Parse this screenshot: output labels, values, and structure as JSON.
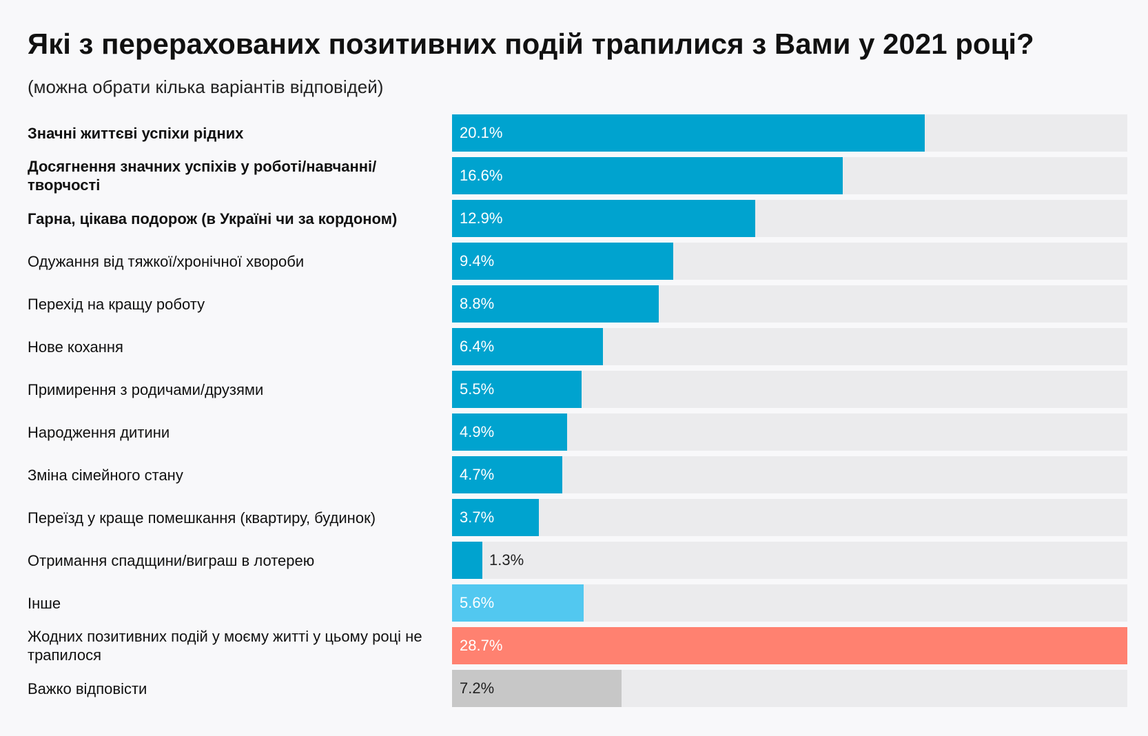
{
  "title": "Які з перерахованих позитивних подій трапилися з Вами у 2021 році?",
  "subtitle": "(можна обрати кілька варіантів відповідей)",
  "colors": {
    "primary": "#00a3cf",
    "other": "#52c8f0",
    "none": "#ff8170",
    "hard": "#c7c7c7",
    "track": "#ebebed"
  },
  "chart_data": {
    "type": "bar",
    "orientation": "horizontal",
    "xlim": [
      0,
      28.7
    ],
    "unit": "%",
    "categories": [
      "Значні життєві успіхи рідних",
      "Досягнення значних успіхів у роботі/навчанні/ творчості",
      "Гарна, цікава подорож (в Україні чи за кордоном)",
      "Одужання від тяжкої/хронічної хвороби",
      "Перехід на кращу роботу",
      "Нове кохання",
      "Примирення з родичами/друзями",
      "Народження дитини",
      "Зміна сімейного стану",
      "Переїзд у краще помешкання (квартиру, будинок)",
      "Отримання спадщини/виграш в лотерею",
      "Інше",
      "Жодних позитивних подій у моєму житті у цьому році не трапилося",
      "Важко відповісти"
    ],
    "values": [
      20.1,
      16.6,
      12.9,
      9.4,
      8.8,
      6.4,
      5.5,
      4.9,
      4.7,
      3.7,
      1.3,
      5.6,
      28.7,
      7.2
    ],
    "value_labels": [
      "20.1%",
      "16.6%",
      "12.9%",
      "9.4%",
      "8.8%",
      "6.4%",
      "5.5%",
      "4.9%",
      "4.7%",
      "3.7%",
      "1.3%",
      "5.6%",
      "28.7%",
      "7.2%"
    ],
    "bold_categories": [
      true,
      true,
      true,
      false,
      false,
      false,
      false,
      false,
      false,
      false,
      false,
      false,
      false,
      false
    ],
    "bar_colors": [
      "#00a3cf",
      "#00a3cf",
      "#00a3cf",
      "#00a3cf",
      "#00a3cf",
      "#00a3cf",
      "#00a3cf",
      "#00a3cf",
      "#00a3cf",
      "#00a3cf",
      "#00a3cf",
      "#52c8f0",
      "#ff8170",
      "#c7c7c7"
    ],
    "label_colors": [
      "#ffffff",
      "#ffffff",
      "#ffffff",
      "#ffffff",
      "#ffffff",
      "#ffffff",
      "#ffffff",
      "#ffffff",
      "#ffffff",
      "#ffffff",
      "#222222",
      "#ffffff",
      "#ffffff",
      "#222222"
    ],
    "label_outside": [
      false,
      false,
      false,
      false,
      false,
      false,
      false,
      false,
      false,
      false,
      true,
      false,
      false,
      false
    ]
  }
}
